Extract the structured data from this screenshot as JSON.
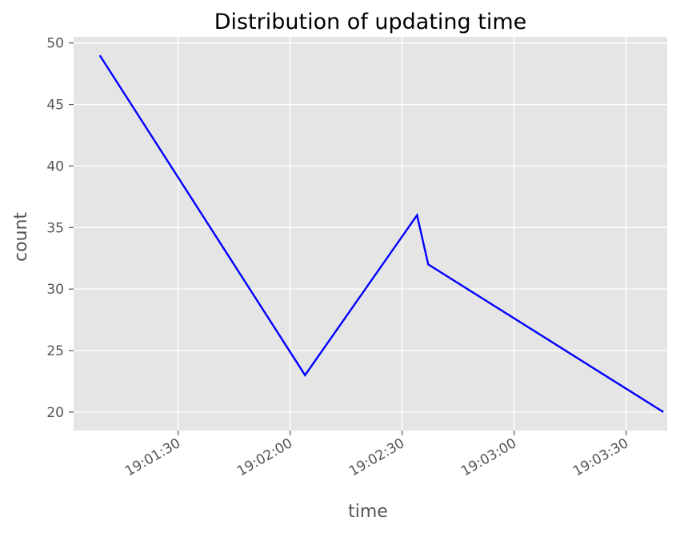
{
  "chart_data": {
    "type": "line",
    "title": "Distribution of updating time",
    "xlabel": "time",
    "ylabel": "count",
    "style": "ggplot",
    "grid": true,
    "line_color": "#0000ff",
    "background_color": "#e5e5e5",
    "grid_color": "#ffffff",
    "x_type": "time",
    "x_tick_labels": [
      "19:01:30",
      "19:02:00",
      "19:02:30",
      "19:03:00",
      "19:03:30"
    ],
    "y_ticks": [
      20,
      25,
      30,
      35,
      40,
      45,
      50
    ],
    "ylim": [
      18.5,
      50.5
    ],
    "xlim": [
      "19:01:02",
      "19:03:41"
    ],
    "series": [
      {
        "x": [
          "19:01:09",
          "19:02:04",
          "19:02:34",
          "19:02:37",
          "19:03:40"
        ],
        "values": [
          49,
          23,
          36,
          32,
          20
        ]
      }
    ]
  }
}
